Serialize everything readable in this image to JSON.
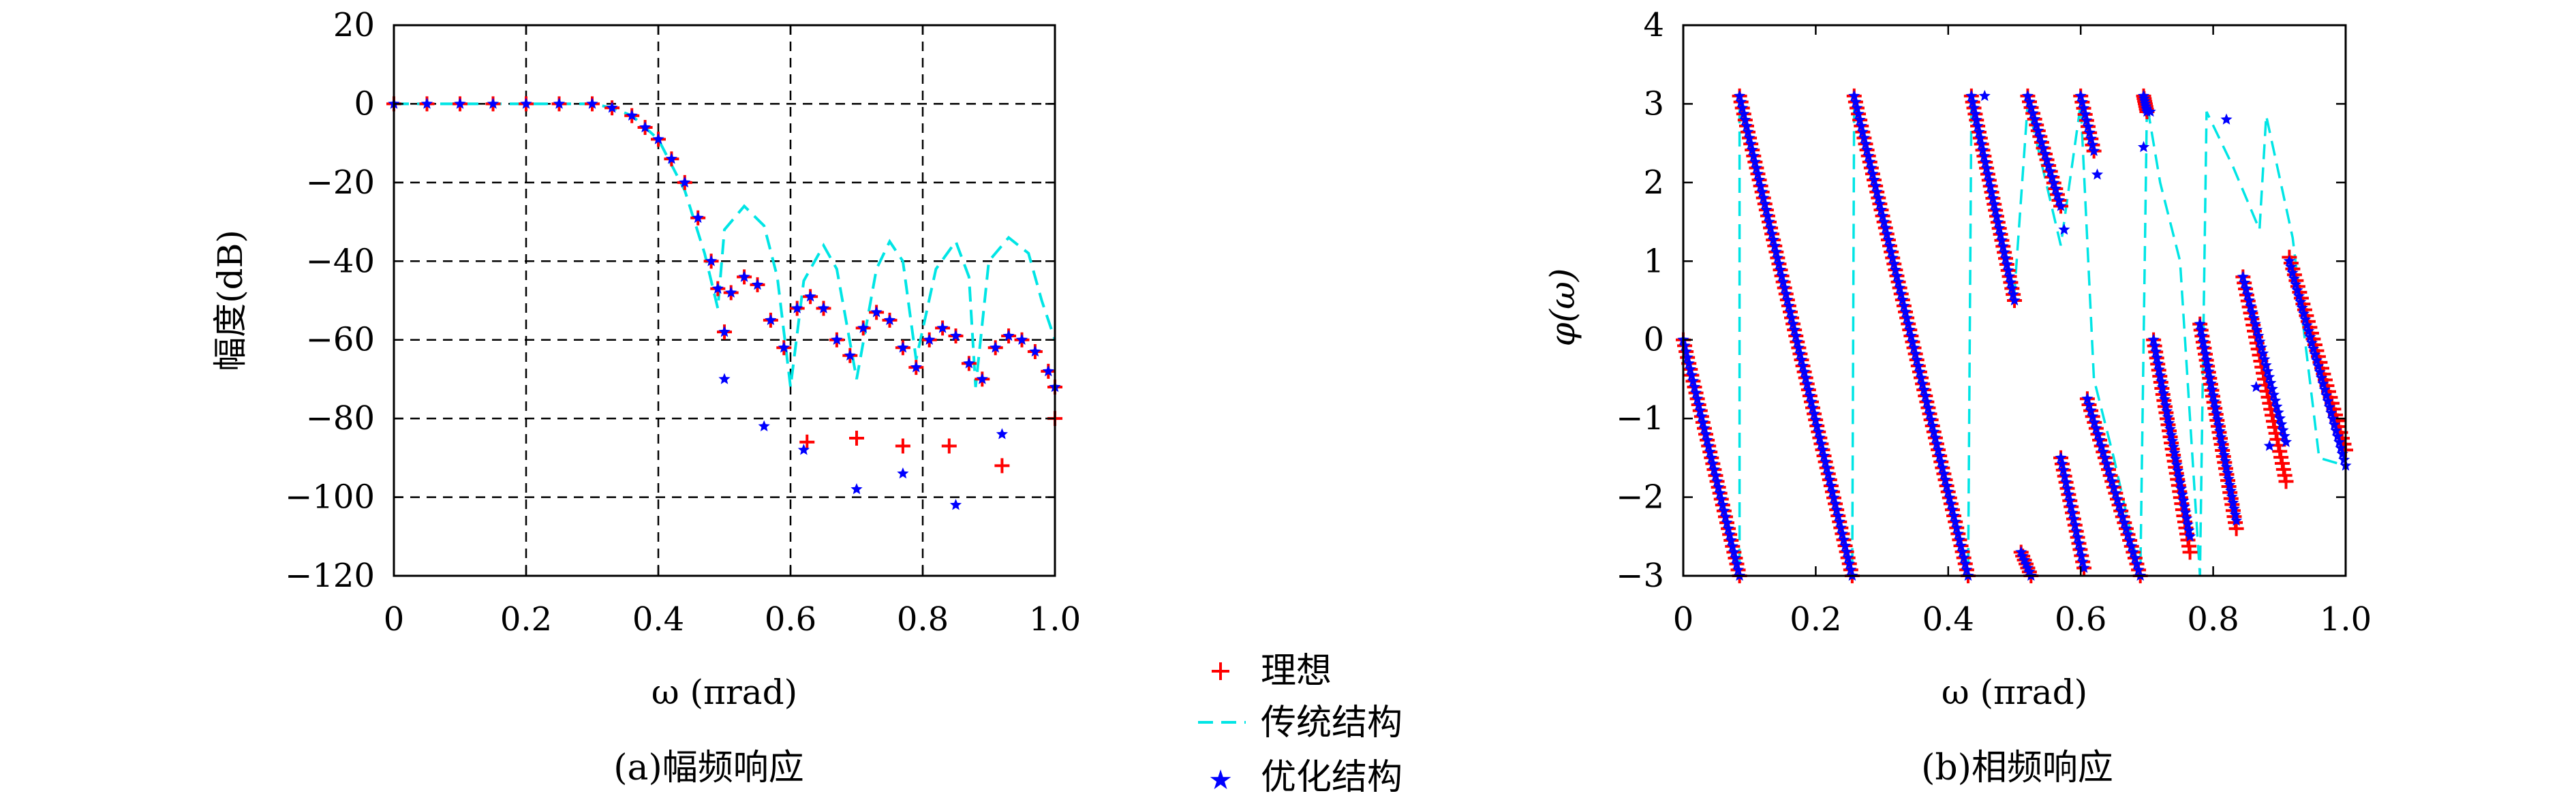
{
  "chart_data": [
    {
      "type": "line",
      "caption": "(a)幅频响应",
      "xlabel": "ω (πrad)",
      "ylabel": "幅度(dB)",
      "xlim": [
        0,
        1.0
      ],
      "ylim": [
        -120,
        20
      ],
      "xticks": [
        "0",
        "0.2",
        "0.4",
        "0.6",
        "0.8",
        "1.0"
      ],
      "yticks": [
        "20",
        "0",
        "−20",
        "−40",
        "−60",
        "−80",
        "−100",
        "−120"
      ],
      "grid": true,
      "series": [
        {
          "name": "理想",
          "marker": "plus",
          "color": "#ff0000",
          "x": [
            0,
            0.05,
            0.1,
            0.15,
            0.2,
            0.25,
            0.3,
            0.33,
            0.36,
            0.38,
            0.4,
            0.42,
            0.44,
            0.46,
            0.48,
            0.49,
            0.5,
            0.51,
            0.53,
            0.55,
            0.57,
            0.59,
            0.61,
            0.63,
            0.65,
            0.67,
            0.69,
            0.71,
            0.73,
            0.75,
            0.77,
            0.79,
            0.81,
            0.83,
            0.85,
            0.87,
            0.89,
            0.91,
            0.93,
            0.95,
            0.97,
            0.99,
            1.0,
            0.625,
            0.7,
            0.77,
            0.84,
            0.92,
            1.0
          ],
          "y": [
            0,
            0,
            0,
            0,
            0,
            0,
            0,
            -1,
            -3,
            -6,
            -9,
            -14,
            -20,
            -29,
            -40,
            -47,
            -58,
            -48,
            -44,
            -46,
            -55,
            -62,
            -52,
            -49,
            -52,
            -60,
            -64,
            -57,
            -53,
            -55,
            -62,
            -67,
            -60,
            -57,
            -59,
            -66,
            -70,
            -62,
            -59,
            -60,
            -63,
            -68,
            -72,
            -86,
            -85,
            -87,
            -87,
            -92,
            -80
          ]
        },
        {
          "name": "传统结构",
          "line": "dashed",
          "color": "#00e5e5",
          "x": [
            0,
            0.1,
            0.2,
            0.3,
            0.33,
            0.36,
            0.4,
            0.44,
            0.47,
            0.49,
            0.5,
            0.53,
            0.56,
            0.58,
            0.6,
            0.62,
            0.65,
            0.67,
            0.7,
            0.73,
            0.75,
            0.77,
            0.79,
            0.82,
            0.85,
            0.87,
            0.88,
            0.9,
            0.93,
            0.96,
            0.98,
            1.0
          ],
          "y": [
            0,
            0,
            0,
            0,
            -1,
            -3,
            -9,
            -22,
            -38,
            -52,
            -32,
            -26,
            -31,
            -44,
            -72,
            -45,
            -36,
            -42,
            -70,
            -42,
            -35,
            -40,
            -65,
            -42,
            -35,
            -44,
            -72,
            -40,
            -34,
            -38,
            -50,
            -60
          ]
        },
        {
          "name": "优化结构",
          "marker": "star",
          "color": "#0000ff",
          "x": [
            0,
            0.05,
            0.1,
            0.15,
            0.2,
            0.25,
            0.3,
            0.33,
            0.36,
            0.38,
            0.4,
            0.42,
            0.44,
            0.46,
            0.48,
            0.49,
            0.5,
            0.51,
            0.53,
            0.55,
            0.57,
            0.59,
            0.61,
            0.63,
            0.65,
            0.67,
            0.69,
            0.71,
            0.73,
            0.75,
            0.77,
            0.79,
            0.81,
            0.83,
            0.85,
            0.87,
            0.89,
            0.91,
            0.93,
            0.95,
            0.97,
            0.99,
            1.0,
            0.5,
            0.56,
            0.62,
            0.7,
            0.77,
            0.85,
            0.92
          ],
          "y": [
            0,
            0,
            0,
            0,
            0,
            0,
            0,
            -1,
            -3,
            -6,
            -9,
            -14,
            -20,
            -29,
            -40,
            -47,
            -58,
            -48,
            -44,
            -46,
            -55,
            -62,
            -52,
            -49,
            -52,
            -60,
            -64,
            -57,
            -53,
            -55,
            -62,
            -67,
            -60,
            -57,
            -59,
            -66,
            -70,
            -62,
            -59,
            -60,
            -63,
            -68,
            -72,
            -70,
            -82,
            -88,
            -98,
            -94,
            -102,
            -84
          ]
        }
      ]
    },
    {
      "type": "line",
      "caption": "(b)相频响应",
      "xlabel": "ω (πrad)",
      "ylabel": "φ(ω)",
      "xlim": [
        0,
        1.0
      ],
      "ylim": [
        -3,
        4
      ],
      "xticks": [
        "0",
        "0.2",
        "0.4",
        "0.6",
        "0.8",
        "1.0"
      ],
      "yticks": [
        "4",
        "3",
        "2",
        "1",
        "0",
        "−1",
        "−2",
        "−3"
      ],
      "grid": false,
      "series": [
        {
          "name": "理想",
          "marker": "plus",
          "color": "#ff0000",
          "segments": [
            [
              [
                0.0,
                0.0
              ],
              [
                0.085,
                -3.0
              ]
            ],
            [
              [
                0.085,
                3.1
              ],
              [
                0.255,
                -3.0
              ]
            ],
            [
              [
                0.258,
                3.1
              ],
              [
                0.43,
                -3.0
              ]
            ],
            [
              [
                0.435,
                3.1
              ],
              [
                0.5,
                0.5
              ]
            ],
            [
              [
                0.52,
                3.1
              ],
              [
                0.57,
                1.7
              ]
            ],
            [
              [
                0.6,
                3.1
              ],
              [
                0.62,
                2.4
              ]
            ],
            [
              [
                0.695,
                3.1
              ],
              [
                0.7,
                2.9
              ]
            ],
            [
              [
                0.51,
                -2.7
              ],
              [
                0.525,
                -3.0
              ]
            ],
            [
              [
                0.57,
                -1.5
              ],
              [
                0.605,
                -2.9
              ]
            ],
            [
              [
                0.61,
                -0.75
              ],
              [
                0.69,
                -3.0
              ]
            ],
            [
              [
                0.71,
                0.0
              ],
              [
                0.765,
                -2.7
              ]
            ],
            [
              [
                0.78,
                0.2
              ],
              [
                0.835,
                -2.4
              ]
            ],
            [
              [
                0.845,
                0.8
              ],
              [
                0.91,
                -1.8
              ]
            ],
            [
              [
                0.915,
                1.05
              ],
              [
                1.0,
                -1.4
              ]
            ]
          ]
        },
        {
          "name": "传统结构",
          "line": "dashed",
          "color": "#00e5e5",
          "x": [
            0,
            0.085,
            0.085,
            0.255,
            0.258,
            0.43,
            0.435,
            0.5,
            0.52,
            0.57,
            0.6,
            0.62,
            0.65,
            0.69,
            0.7,
            0.72,
            0.75,
            0.78,
            0.79,
            0.83,
            0.87,
            0.88,
            0.92,
            0.96,
            1.0
          ],
          "y": [
            0,
            -3.0,
            3.1,
            -3.0,
            3.1,
            -3.0,
            3.0,
            0.6,
            3.0,
            1.2,
            3.0,
            -0.5,
            -1.5,
            -3.0,
            3.0,
            2.0,
            1.0,
            -3.0,
            2.9,
            2.2,
            1.4,
            2.85,
            1.3,
            -1.5,
            -1.6
          ]
        },
        {
          "name": "优化结构",
          "marker": "star",
          "color": "#0000ff",
          "segments": [
            [
              [
                0.0,
                0.0
              ],
              [
                0.085,
                -3.0
              ]
            ],
            [
              [
                0.085,
                3.1
              ],
              [
                0.255,
                -3.0
              ]
            ],
            [
              [
                0.258,
                3.1
              ],
              [
                0.43,
                -3.0
              ]
            ],
            [
              [
                0.435,
                3.1
              ],
              [
                0.5,
                0.5
              ]
            ],
            [
              [
                0.52,
                3.1
              ],
              [
                0.57,
                1.7
              ]
            ],
            [
              [
                0.6,
                3.1
              ],
              [
                0.62,
                2.4
              ]
            ],
            [
              [
                0.695,
                3.1
              ],
              [
                0.7,
                2.9
              ]
            ],
            [
              [
                0.51,
                -2.7
              ],
              [
                0.525,
                -3.0
              ]
            ],
            [
              [
                0.57,
                -1.5
              ],
              [
                0.605,
                -2.9
              ]
            ],
            [
              [
                0.61,
                -0.75
              ],
              [
                0.69,
                -3.0
              ]
            ],
            [
              [
                0.71,
                0.0
              ],
              [
                0.765,
                -2.5
              ]
            ],
            [
              [
                0.78,
                0.2
              ],
              [
                0.835,
                -2.3
              ]
            ],
            [
              [
                0.845,
                0.8
              ],
              [
                0.91,
                -1.3
              ]
            ],
            [
              [
                0.915,
                1.0
              ],
              [
                1.0,
                -1.6
              ]
            ]
          ],
          "extra": [
            [
              0.625,
              2.1
            ],
            [
              0.695,
              2.45
            ],
            [
              0.705,
              2.9
            ],
            [
              0.575,
              1.4
            ],
            [
              0.455,
              3.1
            ],
            [
              0.82,
              2.8
            ],
            [
              0.865,
              -0.6
            ],
            [
              0.885,
              -1.35
            ]
          ]
        }
      ]
    }
  ],
  "legend": {
    "placement": "bottom-center",
    "items": [
      {
        "label": "理想",
        "symbol": "plus",
        "color": "#ff0000"
      },
      {
        "label": "传统结构",
        "symbol": "dashed-line",
        "color": "#00e5e5"
      },
      {
        "label": "优化结构",
        "symbol": "star",
        "color": "#0000ff"
      }
    ]
  }
}
